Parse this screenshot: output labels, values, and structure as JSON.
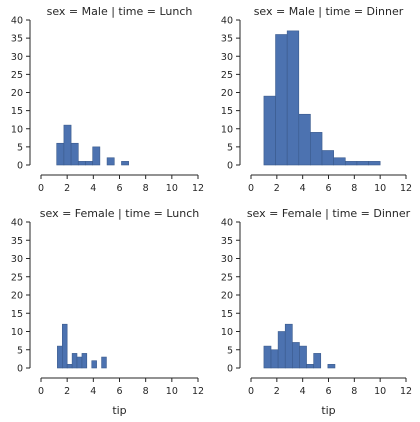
{
  "chart_data": {
    "type": "bar",
    "title": "",
    "xlabel": "tip",
    "ylabel": "",
    "xlim": [
      0,
      12
    ],
    "ylim": [
      0,
      40
    ],
    "xticks": [
      0,
      2,
      4,
      6,
      8,
      10,
      12
    ],
    "yticks": [
      0,
      5,
      10,
      15,
      20,
      25,
      30,
      35,
      40
    ],
    "grid": false,
    "color": "#4c72b0",
    "facets": [
      {
        "title": "sex = Male | time = Lunch",
        "bins": [
          {
            "x0": 1.2,
            "x1": 1.75,
            "count": 6
          },
          {
            "x0": 1.75,
            "x1": 2.3,
            "count": 11
          },
          {
            "x0": 2.3,
            "x1": 2.85,
            "count": 6
          },
          {
            "x0": 2.85,
            "x1": 3.4,
            "count": 1
          },
          {
            "x0": 3.4,
            "x1": 3.95,
            "count": 1
          },
          {
            "x0": 3.95,
            "x1": 4.5,
            "count": 5
          },
          {
            "x0": 4.5,
            "x1": 5.05,
            "count": 0
          },
          {
            "x0": 5.05,
            "x1": 5.6,
            "count": 2
          },
          {
            "x0": 5.6,
            "x1": 6.15,
            "count": 0
          },
          {
            "x0": 6.15,
            "x1": 6.7,
            "count": 1
          }
        ]
      },
      {
        "title": "sex = Male | time = Dinner",
        "bins": [
          {
            "x0": 1.0,
            "x1": 1.9,
            "count": 19
          },
          {
            "x0": 1.9,
            "x1": 2.8,
            "count": 36
          },
          {
            "x0": 2.8,
            "x1": 3.7,
            "count": 37
          },
          {
            "x0": 3.7,
            "x1": 4.6,
            "count": 14
          },
          {
            "x0": 4.6,
            "x1": 5.5,
            "count": 9
          },
          {
            "x0": 5.5,
            "x1": 6.4,
            "count": 4
          },
          {
            "x0": 6.4,
            "x1": 7.3,
            "count": 2
          },
          {
            "x0": 7.3,
            "x1": 8.2,
            "count": 1
          },
          {
            "x0": 8.2,
            "x1": 9.1,
            "count": 1
          },
          {
            "x0": 9.1,
            "x1": 10.0,
            "count": 1
          }
        ]
      },
      {
        "title": "sex = Female | time = Lunch",
        "bins": [
          {
            "x0": 1.25,
            "x1": 1.63,
            "count": 6
          },
          {
            "x0": 1.63,
            "x1": 2.0,
            "count": 12
          },
          {
            "x0": 2.0,
            "x1": 2.38,
            "count": 1
          },
          {
            "x0": 2.38,
            "x1": 2.75,
            "count": 4
          },
          {
            "x0": 2.75,
            "x1": 3.13,
            "count": 3
          },
          {
            "x0": 3.13,
            "x1": 3.5,
            "count": 4
          },
          {
            "x0": 3.5,
            "x1": 3.88,
            "count": 0
          },
          {
            "x0": 3.88,
            "x1": 4.25,
            "count": 2
          },
          {
            "x0": 4.25,
            "x1": 4.63,
            "count": 0
          },
          {
            "x0": 4.63,
            "x1": 5.0,
            "count": 3
          }
        ]
      },
      {
        "title": "sex = Female | time = Dinner",
        "bins": [
          {
            "x0": 1.0,
            "x1": 1.55,
            "count": 6
          },
          {
            "x0": 1.55,
            "x1": 2.1,
            "count": 5
          },
          {
            "x0": 2.1,
            "x1": 2.65,
            "count": 10
          },
          {
            "x0": 2.65,
            "x1": 3.2,
            "count": 12
          },
          {
            "x0": 3.2,
            "x1": 3.75,
            "count": 7
          },
          {
            "x0": 3.75,
            "x1": 4.3,
            "count": 6
          },
          {
            "x0": 4.3,
            "x1": 4.85,
            "count": 1
          },
          {
            "x0": 4.85,
            "x1": 5.4,
            "count": 4
          },
          {
            "x0": 5.4,
            "x1": 5.95,
            "count": 0
          },
          {
            "x0": 5.95,
            "x1": 6.5,
            "count": 1
          }
        ]
      }
    ]
  }
}
